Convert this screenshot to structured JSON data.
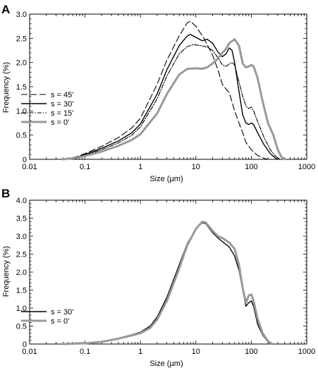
{
  "chart_data": [
    {
      "panel": "A",
      "type": "line",
      "xscale": "log",
      "xlim": [
        0.01,
        1000
      ],
      "ylim": [
        0,
        3.0
      ],
      "xlabel": "Size (µm)",
      "ylabel": "Frequency (%)",
      "x_ticks": [
        "0.01",
        "0.1",
        "1",
        "10",
        "100",
        "1000"
      ],
      "y_ticks": [
        "0",
        "0.5",
        "1.0",
        "1.5",
        "2.0",
        "2.5",
        "3.0"
      ],
      "legend_position": "left-middle",
      "series": [
        {
          "name": "s = 45'",
          "color": "#000000",
          "width": 1.1,
          "dash": "9,4",
          "points": [
            [
              0.04,
              0
            ],
            [
              0.07,
              0.05
            ],
            [
              0.1,
              0.12
            ],
            [
              0.2,
              0.27
            ],
            [
              0.4,
              0.45
            ],
            [
              0.7,
              0.65
            ],
            [
              1,
              0.85
            ],
            [
              2,
              1.55
            ],
            [
              3,
              2.05
            ],
            [
              5,
              2.55
            ],
            [
              7,
              2.82
            ],
            [
              8,
              2.85
            ],
            [
              10,
              2.75
            ],
            [
              14,
              2.5
            ],
            [
              20,
              2.15
            ],
            [
              25,
              1.85
            ],
            [
              30,
              1.55
            ],
            [
              35,
              1.45
            ],
            [
              40,
              1.38
            ],
            [
              50,
              1.0
            ],
            [
              60,
              0.75
            ],
            [
              70,
              0.55
            ],
            [
              80,
              0.35
            ],
            [
              100,
              0.2
            ],
            [
              130,
              0.08
            ],
            [
              170,
              0.02
            ],
            [
              200,
              0
            ]
          ]
        },
        {
          "name": "s = 30'",
          "color": "#000000",
          "width": 1.4,
          "dash": "",
          "points": [
            [
              0.04,
              0
            ],
            [
              0.07,
              0.04
            ],
            [
              0.1,
              0.1
            ],
            [
              0.2,
              0.23
            ],
            [
              0.4,
              0.38
            ],
            [
              0.7,
              0.55
            ],
            [
              1,
              0.73
            ],
            [
              2,
              1.35
            ],
            [
              3,
              1.85
            ],
            [
              5,
              2.35
            ],
            [
              7,
              2.55
            ],
            [
              8,
              2.58
            ],
            [
              10,
              2.52
            ],
            [
              13,
              2.45
            ],
            [
              16,
              2.48
            ],
            [
              20,
              2.4
            ],
            [
              25,
              2.22
            ],
            [
              30,
              2.12
            ],
            [
              35,
              2.18
            ],
            [
              40,
              2.3
            ],
            [
              45,
              2.25
            ],
            [
              50,
              2.0
            ],
            [
              60,
              1.4
            ],
            [
              70,
              0.92
            ],
            [
              80,
              0.75
            ],
            [
              90,
              0.72
            ],
            [
              100,
              0.75
            ],
            [
              110,
              0.72
            ],
            [
              130,
              0.55
            ],
            [
              170,
              0.3
            ],
            [
              220,
              0.12
            ],
            [
              270,
              0.03
            ],
            [
              300,
              0
            ]
          ]
        },
        {
          "name": "s = 15'",
          "color": "#000000",
          "width": 1.1,
          "dash": "6,2,1.5,2",
          "points": [
            [
              0.04,
              0
            ],
            [
              0.07,
              0.04
            ],
            [
              0.1,
              0.09
            ],
            [
              0.2,
              0.2
            ],
            [
              0.4,
              0.34
            ],
            [
              0.7,
              0.5
            ],
            [
              1,
              0.67
            ],
            [
              2,
              1.25
            ],
            [
              3,
              1.72
            ],
            [
              5,
              2.18
            ],
            [
              7,
              2.33
            ],
            [
              9,
              2.37
            ],
            [
              12,
              2.35
            ],
            [
              16,
              2.32
            ],
            [
              20,
              2.25
            ],
            [
              25,
              2.1
            ],
            [
              30,
              1.95
            ],
            [
              35,
              1.92
            ],
            [
              40,
              1.97
            ],
            [
              45,
              2.0
            ],
            [
              50,
              1.95
            ],
            [
              60,
              1.6
            ],
            [
              70,
              1.3
            ],
            [
              80,
              1.1
            ],
            [
              90,
              1.05
            ],
            [
              100,
              1.08
            ],
            [
              110,
              1.0
            ],
            [
              130,
              0.78
            ],
            [
              170,
              0.45
            ],
            [
              220,
              0.2
            ],
            [
              270,
              0.07
            ],
            [
              330,
              0
            ]
          ]
        },
        {
          "name": "s = 0'",
          "color": "#999999",
          "width": 3,
          "dash": "",
          "points": [
            [
              0.04,
              0
            ],
            [
              0.07,
              0.03
            ],
            [
              0.1,
              0.07
            ],
            [
              0.2,
              0.16
            ],
            [
              0.4,
              0.28
            ],
            [
              0.7,
              0.4
            ],
            [
              1,
              0.52
            ],
            [
              2,
              0.95
            ],
            [
              3,
              1.35
            ],
            [
              5,
              1.75
            ],
            [
              7,
              1.87
            ],
            [
              10,
              1.88
            ],
            [
              13,
              1.87
            ],
            [
              16,
              1.9
            ],
            [
              20,
              1.98
            ],
            [
              25,
              2.08
            ],
            [
              30,
              2.2
            ],
            [
              35,
              2.28
            ],
            [
              40,
              2.4
            ],
            [
              50,
              2.48
            ],
            [
              60,
              2.35
            ],
            [
              70,
              1.98
            ],
            [
              80,
              1.9
            ],
            [
              90,
              1.92
            ],
            [
              100,
              1.95
            ],
            [
              110,
              1.92
            ],
            [
              130,
              1.68
            ],
            [
              160,
              1.2
            ],
            [
              200,
              0.75
            ],
            [
              250,
              0.5
            ],
            [
              300,
              0.2
            ],
            [
              350,
              0.05
            ],
            [
              400,
              0
            ]
          ]
        }
      ]
    },
    {
      "panel": "B",
      "type": "line",
      "xscale": "log",
      "xlim": [
        0.01,
        1000
      ],
      "ylim": [
        0,
        4.0
      ],
      "xlabel": "Size (µm)",
      "ylabel": "Frequency (%)",
      "x_ticks": [
        "0.01",
        "0.1",
        "1",
        "10",
        "100",
        "1000"
      ],
      "y_ticks": [
        "0",
        "0.5",
        "1.0",
        "1.5",
        "2.0",
        "2.5",
        "3.0",
        "3.5",
        "4.0"
      ],
      "legend_position": "bottom-left",
      "series": [
        {
          "name": "s = 30'",
          "color": "#000000",
          "width": 1.4,
          "dash": "",
          "points": [
            [
              0.04,
              0
            ],
            [
              0.1,
              0.02
            ],
            [
              0.2,
              0.07
            ],
            [
              0.4,
              0.16
            ],
            [
              0.7,
              0.26
            ],
            [
              1,
              0.33
            ],
            [
              1.5,
              0.5
            ],
            [
              2,
              0.75
            ],
            [
              3,
              1.3
            ],
            [
              5,
              2.2
            ],
            [
              7,
              2.8
            ],
            [
              10,
              3.2
            ],
            [
              13,
              3.37
            ],
            [
              15,
              3.35
            ],
            [
              20,
              3.1
            ],
            [
              25,
              2.95
            ],
            [
              30,
              2.85
            ],
            [
              40,
              2.7
            ],
            [
              50,
              2.45
            ],
            [
              60,
              2.05
            ],
            [
              70,
              1.5
            ],
            [
              80,
              1.05
            ],
            [
              90,
              1.15
            ],
            [
              100,
              1.2
            ],
            [
              110,
              1.05
            ],
            [
              130,
              0.55
            ],
            [
              160,
              0.25
            ],
            [
              200,
              0.06
            ],
            [
              230,
              0
            ]
          ]
        },
        {
          "name": "s = 0'",
          "color": "#999999",
          "width": 3,
          "dash": "",
          "points": [
            [
              0.04,
              0
            ],
            [
              0.1,
              0.02
            ],
            [
              0.2,
              0.06
            ],
            [
              0.4,
              0.15
            ],
            [
              0.7,
              0.24
            ],
            [
              1,
              0.3
            ],
            [
              1.5,
              0.45
            ],
            [
              2,
              0.68
            ],
            [
              3,
              1.2
            ],
            [
              5,
              2.1
            ],
            [
              7,
              2.75
            ],
            [
              10,
              3.2
            ],
            [
              13,
              3.4
            ],
            [
              15,
              3.38
            ],
            [
              20,
              3.15
            ],
            [
              25,
              3.0
            ],
            [
              30,
              2.95
            ],
            [
              40,
              2.82
            ],
            [
              50,
              2.65
            ],
            [
              60,
              2.2
            ],
            [
              70,
              1.55
            ],
            [
              80,
              1.15
            ],
            [
              90,
              1.35
            ],
            [
              100,
              1.38
            ],
            [
              110,
              1.2
            ],
            [
              130,
              0.7
            ],
            [
              160,
              0.3
            ],
            [
              200,
              0.08
            ],
            [
              240,
              0
            ]
          ]
        }
      ]
    }
  ]
}
